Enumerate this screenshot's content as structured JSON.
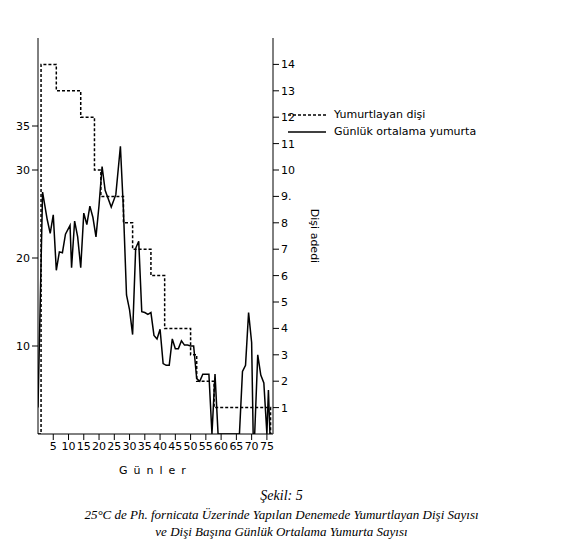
{
  "chart_data": {
    "type": "line",
    "title": "Şekil: 5",
    "subtitle": "25°C de Ph. fornicata Üzerinde Yapılan Denemede Yumurtlayan Dişi Sayısı ve Dişi Başına Günlük Ortalama Yumurta Sayısı",
    "x_label": "Günler",
    "y2_label": "Dişi adedi",
    "xlim": [
      0,
      77
    ],
    "xticks": [
      5,
      10,
      15,
      20,
      25,
      30,
      35,
      40,
      45,
      50,
      55,
      60,
      65,
      70,
      75
    ],
    "ylim": [
      0,
      45
    ],
    "yticks": [
      10,
      20,
      30,
      35
    ],
    "y2lim": [
      0,
      15
    ],
    "y2ticks": [
      1,
      2,
      3,
      4,
      5,
      6,
      7,
      8,
      {
        "value": 9,
        "label": "9."
      },
      10,
      11,
      12,
      13,
      14
    ],
    "grid": false,
    "legend": "upper right",
    "series": [
      {
        "name": "Yumurtlayan dişi",
        "color": "#000000",
        "type": "step",
        "line_style": "dashed",
        "axis": "y2",
        "x": [
          0,
          1,
          6,
          14,
          18.5,
          20.6,
          28,
          31,
          37,
          41.5,
          50,
          52,
          57.7,
          76.2,
          77
        ],
        "values": [
          0,
          14,
          13,
          12,
          10,
          9,
          8,
          7,
          6,
          4,
          3,
          2,
          1,
          0,
          0
        ]
      },
      {
        "name": "Günlük ortalama yumurta",
        "color": "#000000",
        "type": "line",
        "line_style": "solid",
        "x": [
          0,
          1.5,
          3,
          4,
          5,
          6,
          7,
          8,
          9,
          10.5,
          11,
          12,
          13,
          14,
          15,
          16,
          17,
          18,
          19,
          20,
          21,
          22,
          24,
          25.5,
          27,
          28,
          29,
          30,
          31,
          32,
          33,
          34,
          35,
          36,
          37,
          38,
          39,
          40,
          41,
          42,
          43,
          44,
          45,
          46,
          47,
          48,
          49,
          50,
          51,
          52,
          53,
          54,
          55,
          56,
          57,
          58,
          59,
          66,
          67,
          68,
          69,
          70,
          70.5,
          71,
          72,
          73,
          74,
          75,
          75.5,
          76
        ],
        "values": [
          3,
          27.5,
          24.4,
          22.8,
          24.9,
          18.6,
          20.7,
          20.6,
          22.7,
          23.7,
          18.9,
          24.2,
          22.4,
          18.9,
          25.1,
          23.8,
          25.9,
          24.6,
          22.4,
          26,
          30.4,
          27.7,
          25.8,
          27.2,
          32.7,
          25.4,
          15.8,
          14.1,
          11.3,
          21.1,
          21.9,
          13.9,
          13.8,
          13.6,
          13.8,
          11.2,
          10.8,
          11.9,
          8,
          7.8,
          7.8,
          10.8,
          9.7,
          9.7,
          10.6,
          10.1,
          10.1,
          10,
          10,
          6.3,
          6,
          6.8,
          6.8,
          6.8,
          0,
          6.8,
          0,
          0,
          7.1,
          7.8,
          13.8,
          10.4,
          0,
          0,
          9,
          6.7,
          5.8,
          0,
          5,
          0
        ]
      }
    ]
  }
}
